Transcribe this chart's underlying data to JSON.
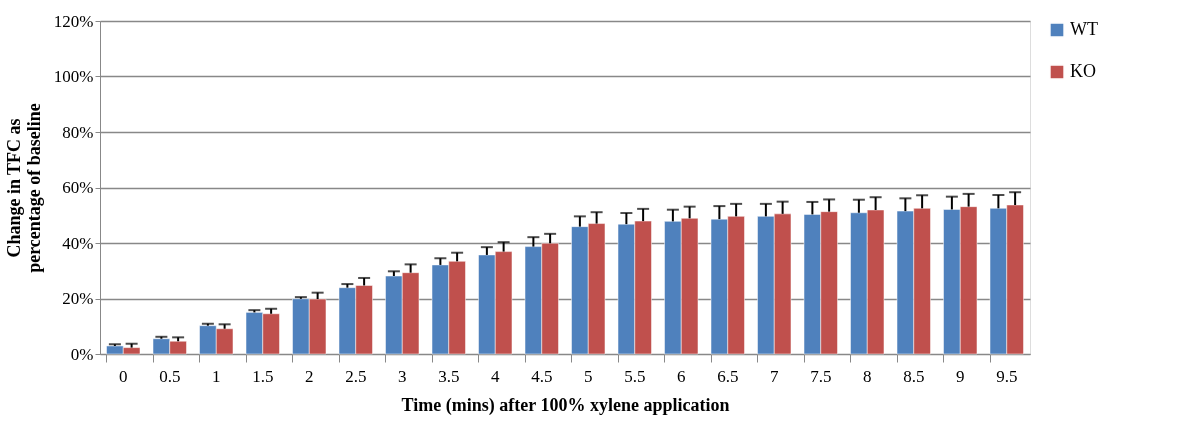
{
  "chart_data": {
    "type": "bar",
    "xlabel": "Time (mins) after 100% xylene application",
    "ylabel": "Change in TFC as percentage of baseline",
    "categories": [
      "0",
      "0.5",
      "1",
      "1.5",
      "2",
      "2.5",
      "3",
      "3.5",
      "4",
      "4.5",
      "5",
      "5.5",
      "6",
      "6.5",
      "7",
      "7.5",
      "8",
      "8.5",
      "9",
      "9.5"
    ],
    "series": [
      {
        "name": "WT",
        "color": "#4f81bd",
        "values": [
          2.9,
          5.5,
          10.2,
          15.0,
          19.9,
          23.9,
          28.1,
          32.1,
          35.7,
          38.7,
          45.9,
          46.8,
          47.8,
          48.6,
          49.6,
          50.3,
          50.9,
          51.5,
          52.1,
          52.5
        ],
        "errors": [
          [
            2.9,
            3.5
          ],
          [
            5.5,
            6.2
          ],
          [
            10.2,
            10.9
          ],
          [
            15.0,
            15.8
          ],
          [
            19.9,
            20.5
          ],
          [
            23.9,
            25.2
          ],
          [
            28.1,
            29.8
          ],
          [
            32.1,
            34.5
          ],
          [
            35.7,
            38.5
          ],
          [
            38.7,
            42.1
          ],
          [
            45.9,
            49.6
          ],
          [
            46.8,
            50.8
          ],
          [
            47.8,
            52.0
          ],
          [
            48.6,
            53.3
          ],
          [
            49.6,
            54.1
          ],
          [
            50.3,
            54.8
          ],
          [
            50.9,
            55.6
          ],
          [
            51.5,
            56.1
          ],
          [
            52.1,
            56.7
          ],
          [
            52.5,
            57.3
          ]
        ]
      },
      {
        "name": "KO",
        "color": "#c0504d",
        "values": [
          2.3,
          4.6,
          9.1,
          14.5,
          19.8,
          24.7,
          29.3,
          33.4,
          36.9,
          39.9,
          47.0,
          47.9,
          48.9,
          49.6,
          50.5,
          51.3,
          51.9,
          52.5,
          53.1,
          53.7
        ],
        "errors": [
          [
            2.3,
            3.7
          ],
          [
            4.6,
            6.0
          ],
          [
            9.1,
            10.7
          ],
          [
            14.5,
            16.3
          ],
          [
            19.8,
            22.1
          ],
          [
            24.7,
            27.4
          ],
          [
            29.3,
            32.3
          ],
          [
            33.4,
            36.5
          ],
          [
            36.9,
            40.3
          ],
          [
            39.9,
            43.3
          ],
          [
            47.0,
            51.1
          ],
          [
            47.9,
            52.3
          ],
          [
            48.9,
            53.1
          ],
          [
            49.6,
            54.1
          ],
          [
            50.5,
            54.9
          ],
          [
            51.3,
            55.7
          ],
          [
            51.9,
            56.5
          ],
          [
            52.5,
            57.2
          ],
          [
            53.1,
            57.7
          ],
          [
            53.7,
            58.3
          ]
        ]
      }
    ],
    "ylim": [
      0,
      120
    ],
    "yticks": [
      {
        "value": 0,
        "label": "0%"
      },
      {
        "value": 20,
        "label": "20%"
      },
      {
        "value": 40,
        "label": "40%"
      },
      {
        "value": 60,
        "label": "60%"
      },
      {
        "value": 80,
        "label": "80%"
      },
      {
        "value": 100,
        "label": "100%"
      },
      {
        "value": 120,
        "label": "120%"
      }
    ],
    "grid": "y",
    "legend": "right"
  }
}
